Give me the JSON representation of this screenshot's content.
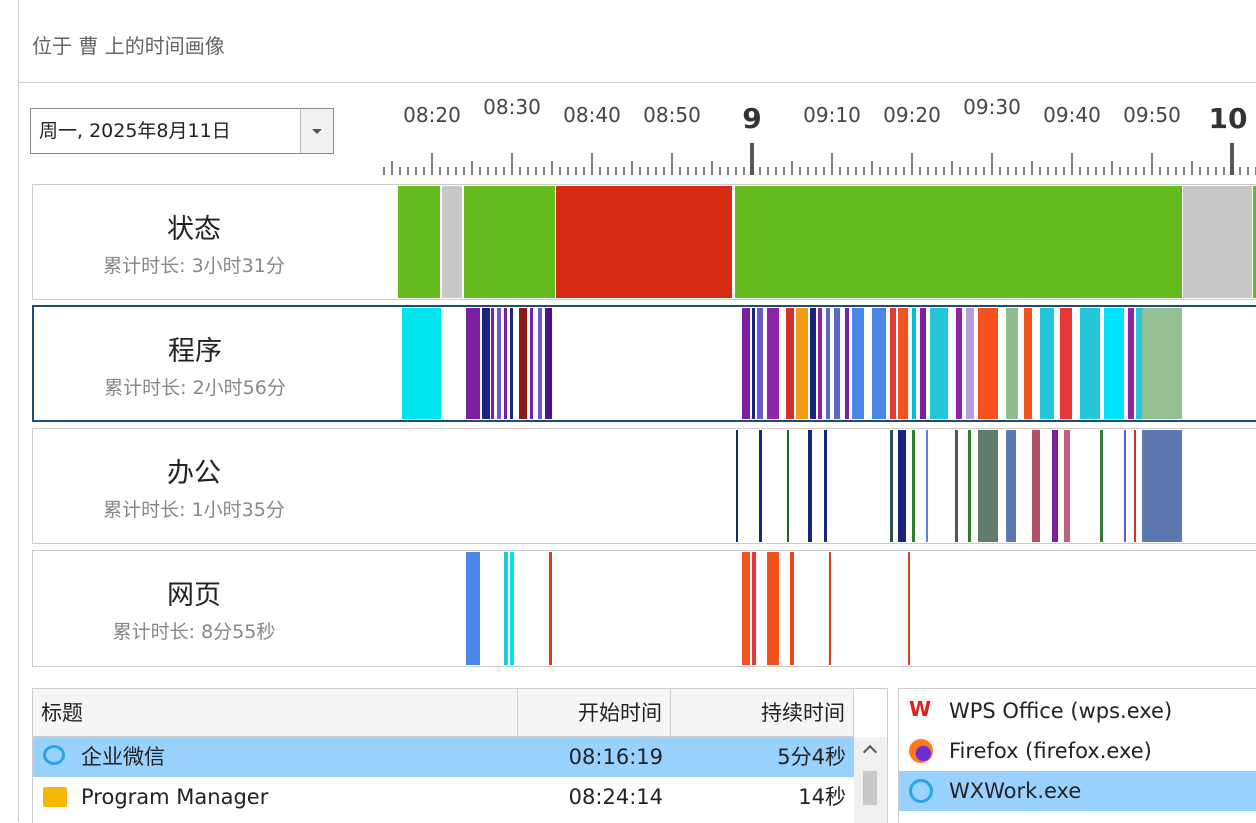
{
  "header": {
    "title": "位于 曹 上的时间画像"
  },
  "date_picker": {
    "value": "周一, 2025年8月11日"
  },
  "timeline": {
    "labels": [
      "08:20",
      "08:30",
      "08:40",
      "08:50",
      "9",
      "09:10",
      "09:20",
      "09:30",
      "09:40",
      "09:50",
      "10"
    ]
  },
  "rows": [
    {
      "name": "状态",
      "total": "累计时长: 3小时31分"
    },
    {
      "name": "程序",
      "total": "累计时长: 2小时56分"
    },
    {
      "name": "办公",
      "total": "累计时长: 1小时35分"
    },
    {
      "name": "网页",
      "total": "累计时长: 8分55秒"
    }
  ],
  "table": {
    "columns": [
      "标题",
      "开始时间",
      "持续时间"
    ],
    "rows": [
      [
        "企业微信",
        "08:16:19",
        "5分4秒"
      ],
      [
        "Program Manager",
        "08:24:14",
        "14秒"
      ]
    ]
  },
  "process_list": [
    "WPS Office (wps.exe)",
    "Firefox (firefox.exe)",
    "WXWork.exe"
  ]
}
